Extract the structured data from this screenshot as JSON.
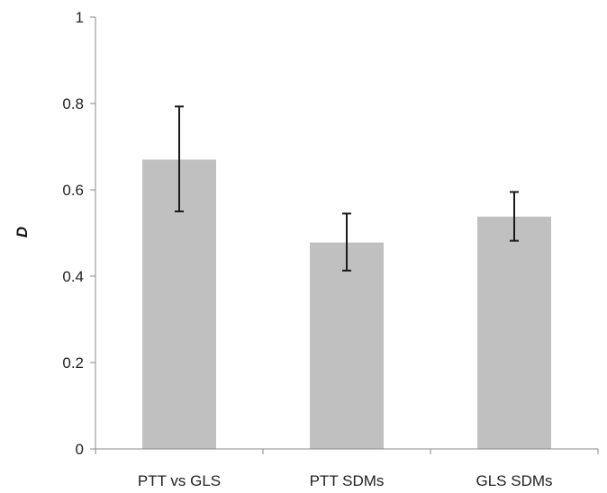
{
  "chart_data": {
    "type": "bar",
    "categories": [
      "PTT vs GLS",
      "PTT SDMs",
      "GLS SDMs"
    ],
    "values": [
      0.67,
      0.478,
      0.538
    ],
    "error_low": [
      0.55,
      0.413,
      0.482
    ],
    "error_high": [
      0.793,
      0.545,
      0.595
    ],
    "title": "",
    "xlabel": "",
    "ylabel": "D",
    "ylim": [
      0,
      1
    ],
    "yticks": [
      "0",
      "0.2",
      "0.4",
      "0.6",
      "0.8",
      "1"
    ],
    "grid": false,
    "legend": "none",
    "colors": {
      "bar": "#c0c0c0",
      "error_bar": "#1a1a1a",
      "axis": "#8a8a8a"
    }
  }
}
